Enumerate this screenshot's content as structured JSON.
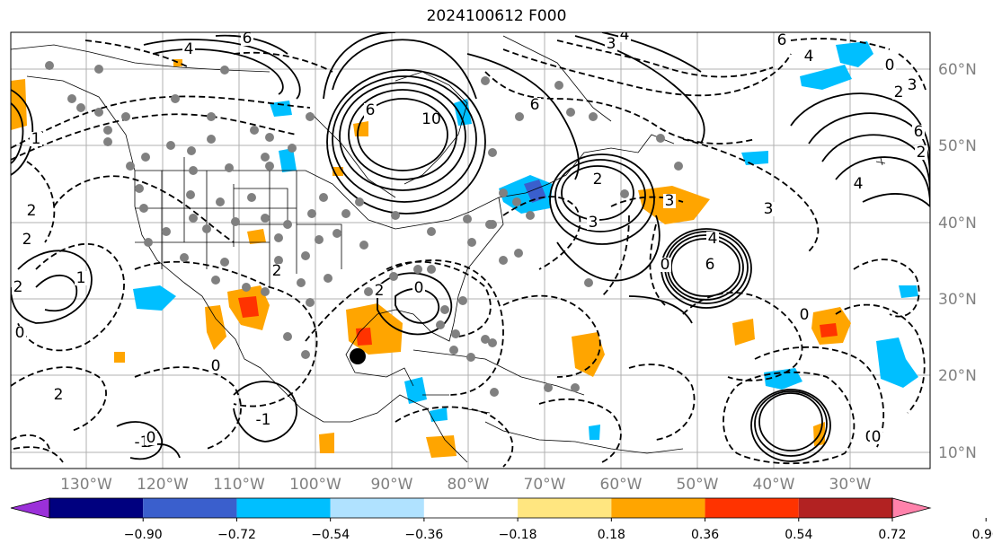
{
  "title": "2024100612 F000",
  "map": {
    "lon_labels": [
      "130°W",
      "120°W",
      "110°W",
      "100°W",
      "90°W",
      "80°W",
      "70°W",
      "60°W",
      "50°W",
      "40°W",
      "30°W"
    ],
    "lat_labels": [
      "60°N",
      "50°N",
      "40°N",
      "30°N",
      "20°N",
      "10°N"
    ],
    "contour_labels": [
      "4",
      "6",
      "6",
      "10",
      "4",
      "6",
      "3",
      "4",
      "0",
      "2",
      "3",
      "6",
      "4",
      "6",
      "3",
      "4",
      "3",
      "2",
      "6",
      "3",
      "0",
      "2",
      "0",
      "0",
      "2",
      "1",
      "2",
      "2",
      "2",
      "0",
      "-1",
      "-1",
      "0",
      "2",
      "0",
      "0",
      "1",
      "2",
      "0"
    ],
    "colors": {
      "land_line": "#000000",
      "grid": "#b0b0b0",
      "label": "#808080",
      "station": "#808080",
      "marker": "#000000"
    }
  },
  "colorbar": {
    "ticks": [
      "−0.90",
      "−0.72",
      "−0.54",
      "−0.36",
      "−0.18",
      "0.18",
      "0.36",
      "0.54",
      "0.72",
      "0.90"
    ],
    "colors": [
      "#9b30d9",
      "#00007f",
      "#3a5fcd",
      "#00bfff",
      "#b0e2ff",
      "#ffffff",
      "#ffe680",
      "#ffa500",
      "#ff3300",
      "#b22222",
      "#ff82ab"
    ]
  }
}
